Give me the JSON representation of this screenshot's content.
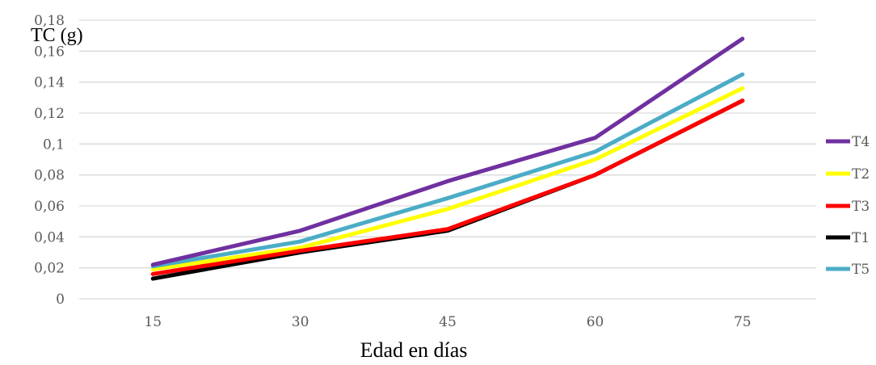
{
  "chart_data": {
    "type": "line",
    "title": "",
    "ylabel": "TC (g)",
    "xlabel": "Edad en días",
    "categories": [
      "15",
      "30",
      "45",
      "60",
      "75"
    ],
    "ylim": [
      0,
      0.18
    ],
    "yticks": [
      0,
      0.02,
      0.04,
      0.06,
      0.08,
      0.1,
      0.12,
      0.14,
      0.16,
      0.18
    ],
    "ytick_labels": [
      "0",
      "0,02",
      "0,04",
      "0,06",
      "0,08",
      "0,1",
      "0,12",
      "0,14",
      "0,16",
      "0,18"
    ],
    "grid": true,
    "legend_position": "right",
    "series": [
      {
        "name": "T4",
        "color": "#7030A0",
        "values": [
          0.022,
          0.044,
          0.076,
          0.104,
          0.168
        ]
      },
      {
        "name": "T2",
        "color": "#FFFF00",
        "values": [
          0.019,
          0.033,
          0.058,
          0.09,
          0.136
        ]
      },
      {
        "name": "T3",
        "color": "#FF0000",
        "values": [
          0.016,
          0.031,
          0.045,
          0.08,
          0.128
        ]
      },
      {
        "name": "T1",
        "color": "#000000",
        "values": [
          0.013,
          0.03,
          0.044,
          0.08,
          0.128
        ]
      },
      {
        "name": "T5",
        "color": "#4BACC6",
        "values": [
          0.021,
          0.037,
          0.065,
          0.095,
          0.145
        ]
      }
    ],
    "legend_order": [
      "T4",
      "T2",
      "T3",
      "T1",
      "T5"
    ]
  }
}
